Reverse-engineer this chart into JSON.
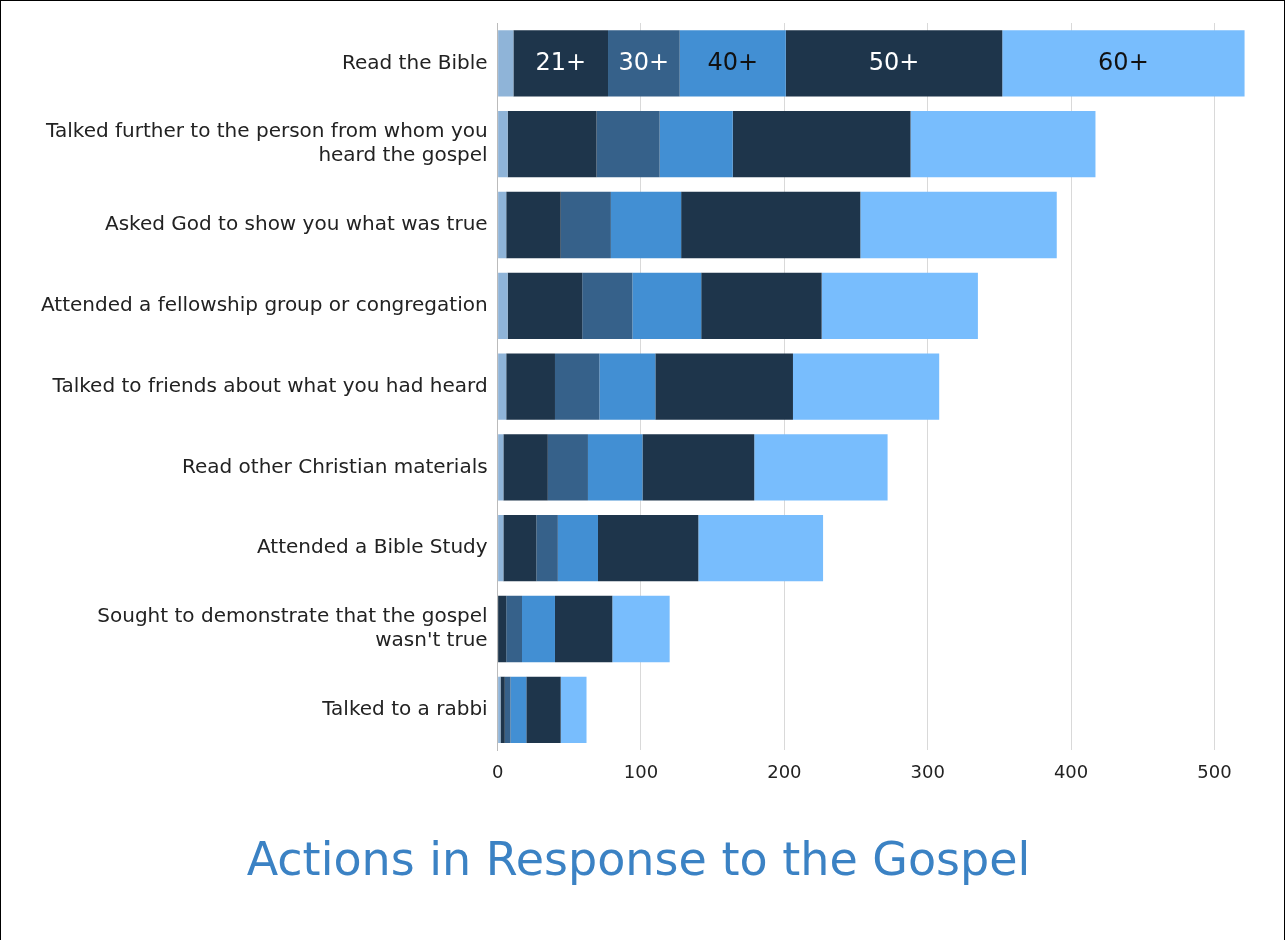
{
  "chart_data": {
    "type": "bar",
    "orientation": "horizontal",
    "stacked": true,
    "title": "Actions in Response to the Gospel",
    "categories": [
      "Read the Bible",
      "Talked further to the person from whom you heard the gospel",
      "Asked God to show you what was true",
      "Attended a fellowship group or congregation",
      "Talked to friends about what you had heard",
      "Read other Christian materials",
      "Attended a Bible Study",
      "Sought to demonstrate that the gospel wasn't true",
      "Talked to a rabbi"
    ],
    "series": [
      {
        "color": "#8fb4d8",
        "values": [
          11,
          7,
          6,
          7,
          6,
          4,
          4,
          0,
          2
        ]
      },
      {
        "name": "21+",
        "color": "#1e354b",
        "values": [
          66,
          62,
          38,
          52,
          34,
          31,
          23,
          6,
          3
        ]
      },
      {
        "name": "30+",
        "color": "#36618a",
        "values": [
          50,
          44,
          35,
          35,
          31,
          28,
          15,
          11,
          4
        ]
      },
      {
        "name": "40+",
        "color": "#428fd3",
        "values": [
          74,
          51,
          49,
          48,
          39,
          38,
          28,
          23,
          11
        ]
      },
      {
        "name": "50+",
        "color": "#1e354b",
        "values": [
          151,
          124,
          125,
          84,
          96,
          78,
          70,
          40,
          24
        ]
      },
      {
        "name": "60+",
        "color": "#78bdfd",
        "values": [
          169,
          129,
          137,
          109,
          102,
          93,
          87,
          40,
          18
        ]
      }
    ],
    "xlim": [
      0,
      522
    ],
    "xticks": [
      0,
      100,
      200,
      300,
      400,
      500
    ],
    "grid": "x",
    "legend": false
  }
}
